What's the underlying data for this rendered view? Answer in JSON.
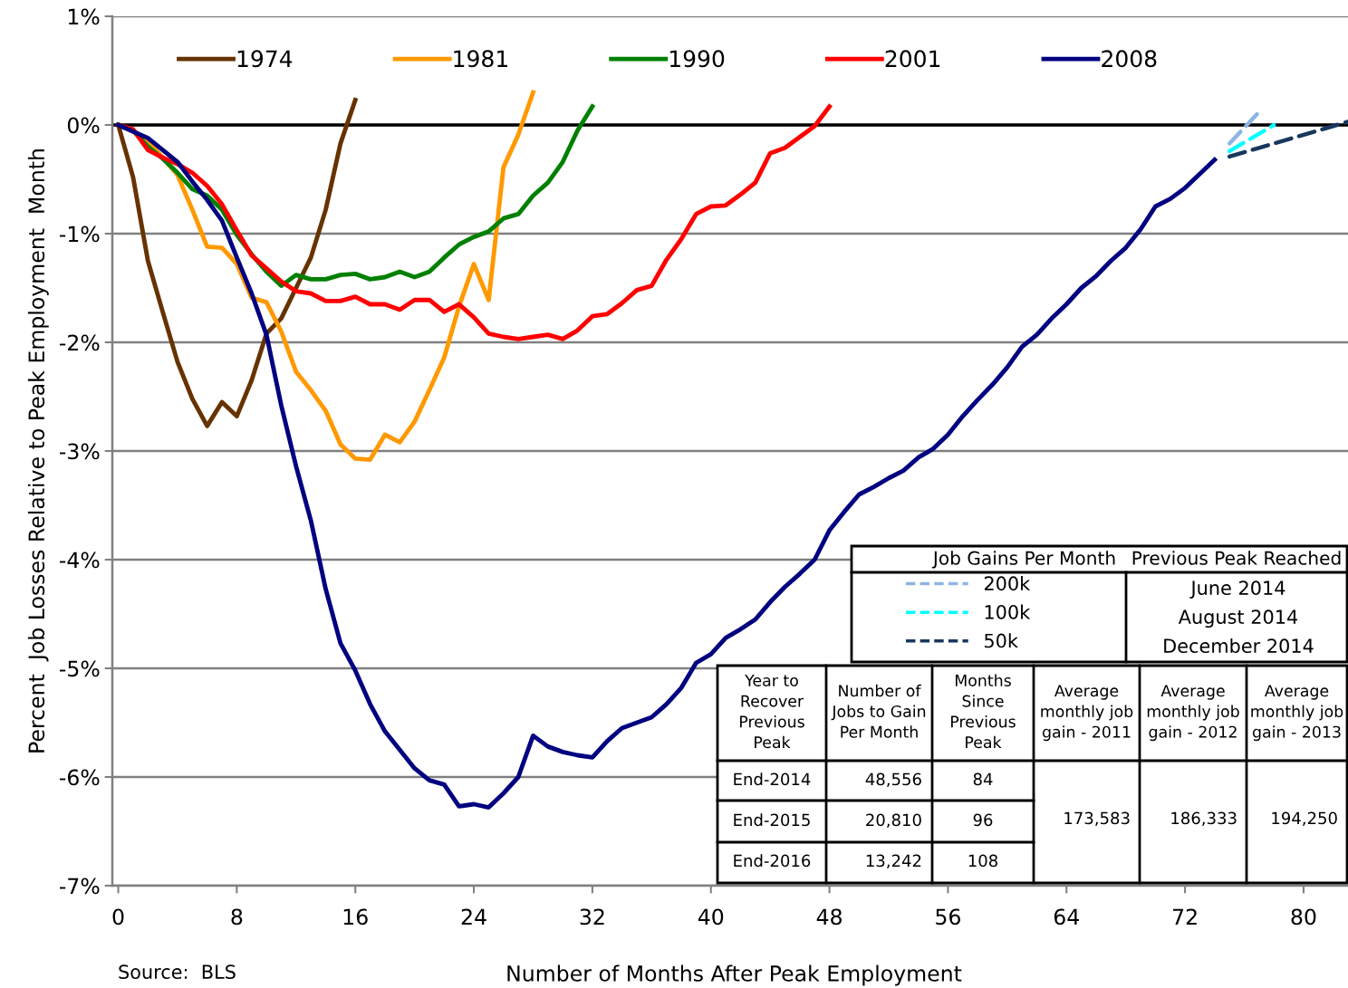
{
  "chart_data": {
    "type": "line",
    "xlabel": "Number of Months After Peak Employment",
    "ylabel": "Percent  Job Losses Relative to Peak Employment  Month",
    "xlim": [
      -0.4,
      83
    ],
    "xticks": [
      0,
      8,
      16,
      24,
      32,
      40,
      48,
      56,
      64,
      72,
      80
    ],
    "ylim": [
      -7,
      1
    ],
    "yticks": [
      {
        "value": 1,
        "label": "1%"
      },
      {
        "value": 0,
        "label": "0%"
      },
      {
        "value": -1,
        "label": "-1%"
      },
      {
        "value": -2,
        "label": "-2%"
      },
      {
        "value": -3,
        "label": "-3%"
      },
      {
        "value": -4,
        "label": "-4%"
      },
      {
        "value": -5,
        "label": "-5%"
      },
      {
        "value": -6,
        "label": "-6%"
      },
      {
        "value": -7,
        "label": "-7%"
      }
    ],
    "grid": "y",
    "legend": "top",
    "marker": "none",
    "ref_lines": [
      {
        "axis": "y",
        "value": 0,
        "color": "#000000"
      }
    ],
    "series": [
      {
        "name": "1974",
        "color": "#663300",
        "line_style": "solid",
        "x": [
          0,
          1,
          2,
          3,
          4,
          5,
          6,
          7,
          8,
          9,
          10,
          11,
          12,
          13,
          14,
          15,
          16
        ],
        "values": [
          0,
          -0.48,
          -1.25,
          -1.72,
          -2.18,
          -2.52,
          -2.77,
          -2.55,
          -2.68,
          -2.35,
          -1.92,
          -1.78,
          -1.5,
          -1.22,
          -0.78,
          -0.17,
          0.23
        ]
      },
      {
        "name": "1981",
        "color": "#ff9900",
        "line_style": "solid",
        "x": [
          0,
          1,
          2,
          3,
          4,
          5,
          6,
          7,
          8,
          9,
          10,
          11,
          12,
          13,
          14,
          15,
          16,
          17,
          18,
          19,
          20,
          21,
          22,
          23,
          24,
          25,
          26,
          27,
          28
        ],
        "values": [
          0,
          -0.05,
          -0.15,
          -0.3,
          -0.46,
          -0.78,
          -1.12,
          -1.13,
          -1.28,
          -1.59,
          -1.63,
          -1.9,
          -2.27,
          -2.44,
          -2.63,
          -2.94,
          -3.07,
          -3.08,
          -2.85,
          -2.92,
          -2.73,
          -2.44,
          -2.14,
          -1.67,
          -1.28,
          -1.61,
          -0.39,
          -0.09,
          0.3
        ]
      },
      {
        "name": "1990",
        "color": "#008000",
        "line_style": "solid",
        "x": [
          0,
          1,
          2,
          3,
          4,
          5,
          6,
          7,
          8,
          9,
          10,
          11,
          12,
          13,
          14,
          15,
          16,
          17,
          18,
          19,
          20,
          21,
          22,
          23,
          24,
          25,
          26,
          27,
          28,
          29,
          30,
          31,
          32
        ],
        "values": [
          0,
          -0.05,
          -0.2,
          -0.31,
          -0.44,
          -0.59,
          -0.65,
          -0.78,
          -1.01,
          -1.19,
          -1.35,
          -1.48,
          -1.38,
          -1.42,
          -1.42,
          -1.38,
          -1.37,
          -1.42,
          -1.4,
          -1.35,
          -1.4,
          -1.35,
          -1.22,
          -1.1,
          -1.03,
          -0.98,
          -0.86,
          -0.82,
          -0.65,
          -0.53,
          -0.34,
          -0.05,
          0.17
        ]
      },
      {
        "name": "2001",
        "color": "#ff0000",
        "line_style": "solid",
        "x": [
          0,
          1,
          2,
          3,
          4,
          5,
          6,
          7,
          8,
          9,
          10,
          11,
          12,
          13,
          14,
          15,
          16,
          17,
          18,
          19,
          20,
          21,
          22,
          23,
          24,
          25,
          26,
          27,
          28,
          29,
          30,
          31,
          32,
          33,
          34,
          35,
          36,
          37,
          38,
          39,
          40,
          41,
          42,
          43,
          44,
          45,
          46,
          47,
          48
        ],
        "values": [
          0,
          -0.04,
          -0.23,
          -0.3,
          -0.36,
          -0.44,
          -0.56,
          -0.73,
          -0.97,
          -1.2,
          -1.32,
          -1.44,
          -1.53,
          -1.55,
          -1.62,
          -1.62,
          -1.58,
          -1.65,
          -1.65,
          -1.7,
          -1.61,
          -1.61,
          -1.72,
          -1.65,
          -1.77,
          -1.92,
          -1.95,
          -1.97,
          -1.95,
          -1.93,
          -1.97,
          -1.89,
          -1.76,
          -1.74,
          -1.64,
          -1.52,
          -1.48,
          -1.24,
          -1.05,
          -0.82,
          -0.75,
          -0.74,
          -0.64,
          -0.53,
          -0.26,
          -0.21,
          -0.11,
          -0.01,
          0.17
        ]
      },
      {
        "name": "2008",
        "color": "#000080",
        "line_style": "solid",
        "x": [
          0,
          1,
          2,
          3,
          4,
          5,
          6,
          7,
          8,
          9,
          10,
          11,
          12,
          13,
          14,
          15,
          16,
          17,
          18,
          19,
          20,
          21,
          22,
          23,
          24,
          25,
          26,
          27,
          28,
          29,
          30,
          31,
          32,
          33,
          34,
          35,
          36,
          37,
          38,
          39,
          40,
          41,
          42,
          43,
          44,
          45,
          46,
          47,
          48,
          49,
          50,
          51,
          52,
          53,
          54,
          55,
          56,
          57,
          58,
          59,
          60,
          61,
          62,
          63,
          64,
          65,
          66,
          67,
          68,
          69,
          70,
          71,
          72,
          73,
          74
        ],
        "values": [
          0,
          -0.06,
          -0.12,
          -0.23,
          -0.34,
          -0.52,
          -0.69,
          -0.88,
          -1.22,
          -1.55,
          -1.93,
          -2.58,
          -3.14,
          -3.64,
          -4.27,
          -4.77,
          -5.02,
          -5.33,
          -5.58,
          -5.75,
          -5.92,
          -6.03,
          -6.07,
          -6.27,
          -6.25,
          -6.28,
          -6.15,
          -6.0,
          -5.62,
          -5.72,
          -5.77,
          -5.8,
          -5.82,
          -5.67,
          -5.55,
          -5.5,
          -5.45,
          -5.33,
          -5.18,
          -4.95,
          -4.87,
          -4.72,
          -4.64,
          -4.55,
          -4.39,
          -4.25,
          -4.13,
          -4.0,
          -3.73,
          -3.56,
          -3.4,
          -3.33,
          -3.25,
          -3.18,
          -3.06,
          -2.98,
          -2.85,
          -2.68,
          -2.53,
          -2.39,
          -2.23,
          -2.04,
          -1.93,
          -1.78,
          -1.65,
          -1.5,
          -1.39,
          -1.25,
          -1.13,
          -0.96,
          -0.75,
          -0.68,
          -0.58,
          -0.45,
          -0.32
        ]
      },
      {
        "name": "200k",
        "color": "#8eb4e3",
        "line_style": "dashed",
        "x": [
          75,
          77
        ],
        "values": [
          -0.17,
          0.12
        ]
      },
      {
        "name": "100k",
        "color": "#00ffff",
        "line_style": "dashed",
        "x": [
          75,
          78
        ],
        "values": [
          -0.24,
          0.0
        ]
      },
      {
        "name": "50k",
        "color": "#17375e",
        "line_style": "dashed",
        "x": [
          75,
          83
        ],
        "values": [
          -0.29,
          0.03
        ]
      }
    ],
    "annotations": [
      "Source:  BLS",
      "Job Gains Per Month",
      "Previous Peak Reached",
      "June 2014",
      "August 2014",
      "December 2014",
      "Year to\nRecover\nPrevious\nPeak",
      "Number of\nJobs to Gain\nPer Month",
      "Months\nSince\nPrevious\nPeak",
      "Average\nmonthly job\ngain - 2011",
      "Average\nmonthly job\ngain - 2012",
      "Average\nmonthly job\ngain - 2013",
      "End-2014",
      "48,556",
      "84",
      "End-2015",
      "20,810",
      "96",
      "End-2016",
      "13,242",
      "108",
      "173,583",
      "186,333",
      "194,250"
    ]
  }
}
